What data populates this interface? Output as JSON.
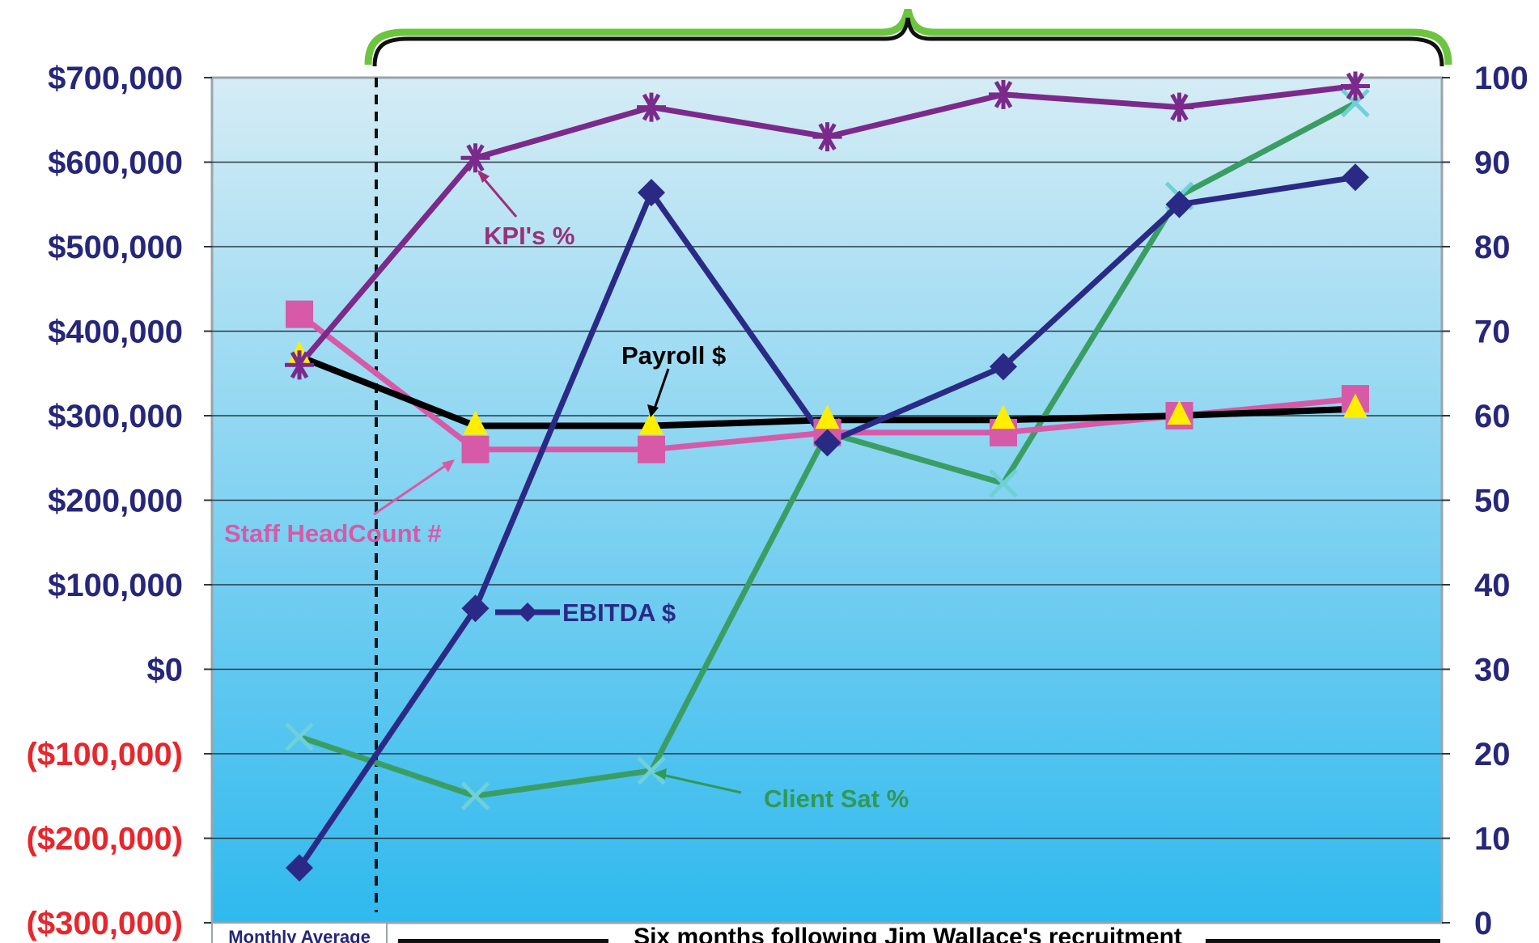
{
  "chart_data": {
    "type": "line",
    "title": "",
    "xlabel": "",
    "ylabel": "",
    "y_left": {
      "min": -300000,
      "max": 700000,
      "ticks": [
        700000,
        600000,
        500000,
        400000,
        300000,
        200000,
        100000,
        0,
        -100000,
        -200000,
        -300000
      ],
      "tick_labels": [
        "$700,000",
        "$600,000",
        "$500,000",
        "$400,000",
        "$300,000",
        "$200,000",
        "$100,000",
        "$0",
        "($100,000)",
        "($200,000)",
        "($300,000)"
      ],
      "positive_color": "#26267a",
      "negative_color": "#e8262c"
    },
    "y_right": {
      "min": 0,
      "max": 100,
      "ticks": [
        100,
        90,
        80,
        70,
        60,
        50,
        40,
        30,
        20,
        10,
        0
      ],
      "tick_labels": [
        "100",
        "90",
        "80",
        "70",
        "60",
        "50",
        "40",
        "30",
        "20",
        "10",
        "0"
      ],
      "color": "#26267a"
    },
    "categories_count": 8,
    "grid": true,
    "series": [
      {
        "name": "KPI's %",
        "axis": "right",
        "color": "#7b2a8c",
        "marker": "star",
        "values": [
          66,
          90.5,
          96.5,
          93,
          98,
          96.5,
          99
        ]
      },
      {
        "name": "EBITDA $",
        "axis": "left",
        "color": "#2a2a86",
        "marker": "diamond",
        "values": [
          -235000,
          72000,
          564000,
          268000,
          358000,
          550000,
          582000
        ]
      },
      {
        "name": "Payroll $",
        "axis": "left",
        "color": "#000000",
        "marker": "triangle",
        "marker_color": "#ffee00",
        "values": [
          370000,
          288000,
          288000,
          295000,
          295000,
          300000,
          308000
        ]
      },
      {
        "name": "Staff HeadCount #",
        "axis": "right",
        "color": "#d65aa8",
        "marker": "square",
        "values": [
          72,
          56,
          56,
          58,
          58,
          60,
          62
        ]
      },
      {
        "name": "Client Sat %",
        "axis": "right",
        "color": "#3a9e64",
        "marker": "x",
        "marker_color": "#6fd0d8",
        "values": [
          22,
          15,
          18,
          58,
          52,
          86,
          97
        ]
      }
    ],
    "annotations": [
      {
        "text": "KPI's %",
        "color": "#9b2f7a"
      },
      {
        "text": "Payroll $",
        "color": "#000000"
      },
      {
        "text": "Staff HeadCount #",
        "color": "#d65aa8"
      },
      {
        "text": "EBITDA $",
        "color": "#2a2a86"
      },
      {
        "text": "Client Sat %",
        "color": "#2f9a55"
      }
    ],
    "footer": {
      "left_label": "Monthly Average",
      "right_label": "Six months following Jim Wallace's recruitment"
    }
  }
}
